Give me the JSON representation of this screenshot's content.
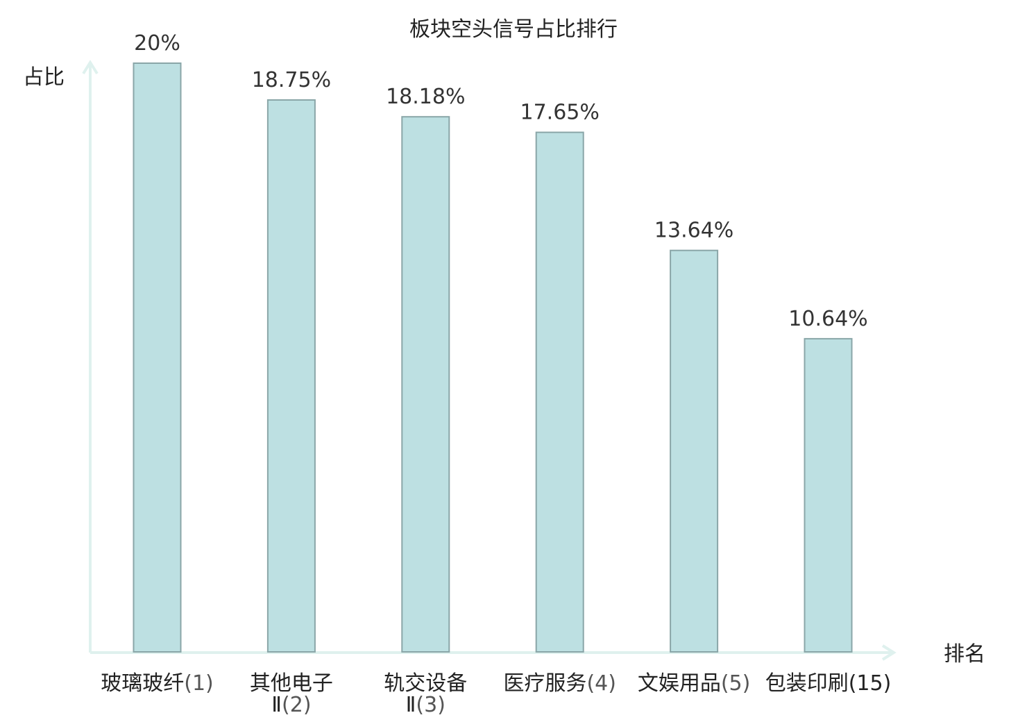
{
  "chart_data": {
    "type": "bar",
    "title": "板块空头信号占比排行",
    "ylabel": "占比",
    "xlabel": "排名",
    "categories": [
      {
        "name": "玻璃玻纤",
        "rank": "(1)",
        "highlight": false
      },
      {
        "name": "其他电子",
        "name_line2": "Ⅱ",
        "rank": "(2)",
        "highlight": false
      },
      {
        "name": "轨交设备",
        "name_line2": "Ⅱ",
        "rank": "(3)",
        "highlight": false
      },
      {
        "name": "医疗服务",
        "rank": "(4)",
        "highlight": false
      },
      {
        "name": "文娱用品",
        "rank": "(5)",
        "highlight": false
      },
      {
        "name": "包装印刷",
        "rank": "(15)",
        "highlight": true
      }
    ],
    "values": [
      20,
      18.75,
      18.18,
      17.65,
      13.64,
      10.64
    ],
    "value_labels": [
      "20%",
      "18.75%",
      "18.18%",
      "17.65%",
      "13.64%",
      "10.64%"
    ],
    "ylim": [
      0,
      20
    ],
    "grid": false,
    "legend": "none"
  },
  "colors": {
    "bar_fill": "#bde0e2",
    "bar_stroke": "#8aa6a8",
    "axis": "#dff1ee",
    "highlight_text": "#e0191f",
    "text": "#222222"
  }
}
